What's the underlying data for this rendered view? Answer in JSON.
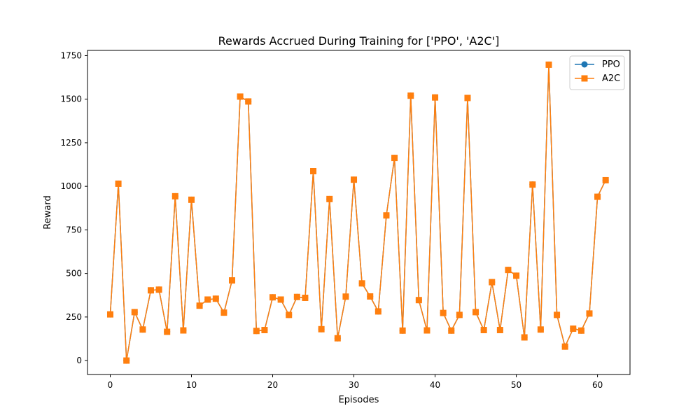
{
  "chart_data": {
    "type": "line",
    "title": "Rewards Accrued During Training for ['PPO', 'A2C']",
    "xlabel": "Episodes",
    "ylabel": "Reward",
    "xlim": [
      -2.8,
      64
    ],
    "ylim": [
      -80,
      1780
    ],
    "xticks": [
      0,
      10,
      20,
      30,
      40,
      50,
      60
    ],
    "yticks": [
      0,
      250,
      500,
      750,
      1000,
      1250,
      1500,
      1750
    ],
    "grid": false,
    "legend": "top-right",
    "x": [
      0,
      1,
      2,
      3,
      4,
      5,
      6,
      7,
      8,
      9,
      10,
      11,
      12,
      13,
      14,
      15,
      16,
      17,
      18,
      19,
      20,
      21,
      22,
      23,
      24,
      25,
      26,
      27,
      28,
      29,
      30,
      31,
      32,
      33,
      34,
      35,
      36,
      37,
      38,
      39,
      40,
      41,
      42,
      43,
      44,
      45,
      46,
      47,
      48,
      49,
      50,
      51,
      52,
      53,
      54,
      55,
      56,
      57,
      58,
      59,
      60,
      61
    ],
    "series": [
      {
        "name": "PPO",
        "color": "#1f77b4",
        "marker": "circle",
        "values": [
          265,
          1015,
          0,
          278,
          178,
          403,
          407,
          165,
          943,
          173,
          923,
          315,
          350,
          355,
          275,
          460,
          1515,
          1487,
          170,
          175,
          363,
          350,
          262,
          365,
          360,
          1087,
          180,
          927,
          128,
          367,
          1038,
          443,
          368,
          282,
          833,
          1163,
          172,
          1520,
          347,
          173,
          1510,
          273,
          172,
          262,
          1507,
          278,
          175,
          450,
          175,
          520,
          487,
          133,
          1010,
          178,
          1698,
          262,
          80,
          183,
          172,
          270,
          940,
          1035
        ]
      },
      {
        "name": "A2C",
        "color": "#ff7f0e",
        "marker": "square",
        "values": [
          265,
          1015,
          0,
          278,
          178,
          403,
          407,
          165,
          943,
          173,
          923,
          315,
          350,
          355,
          275,
          460,
          1515,
          1487,
          170,
          175,
          363,
          350,
          262,
          365,
          360,
          1087,
          180,
          927,
          128,
          367,
          1038,
          443,
          368,
          282,
          833,
          1163,
          172,
          1520,
          347,
          173,
          1510,
          273,
          172,
          262,
          1507,
          278,
          175,
          450,
          175,
          520,
          487,
          133,
          1010,
          178,
          1698,
          262,
          80,
          183,
          172,
          270,
          940,
          1035
        ]
      }
    ]
  }
}
